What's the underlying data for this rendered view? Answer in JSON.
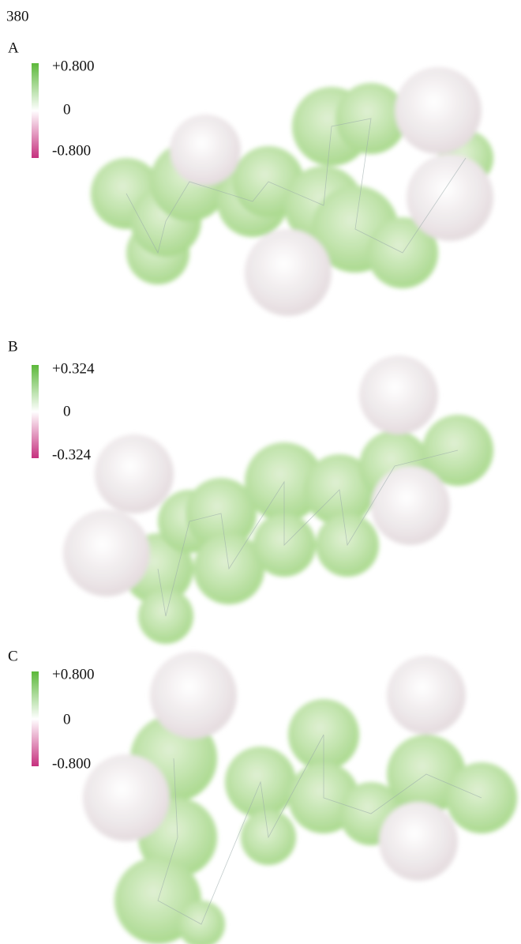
{
  "page_number": "380",
  "panels": [
    {
      "label": "A",
      "colorbar": {
        "max": "+0.800",
        "zero": "0",
        "min": "-0.800"
      }
    },
    {
      "label": "B",
      "colorbar": {
        "max": "+0.324",
        "zero": "0",
        "min": "-0.324"
      }
    },
    {
      "label": "C",
      "colorbar": {
        "max": "+0.800",
        "zero": "0",
        "min": "-0.800"
      }
    }
  ]
}
